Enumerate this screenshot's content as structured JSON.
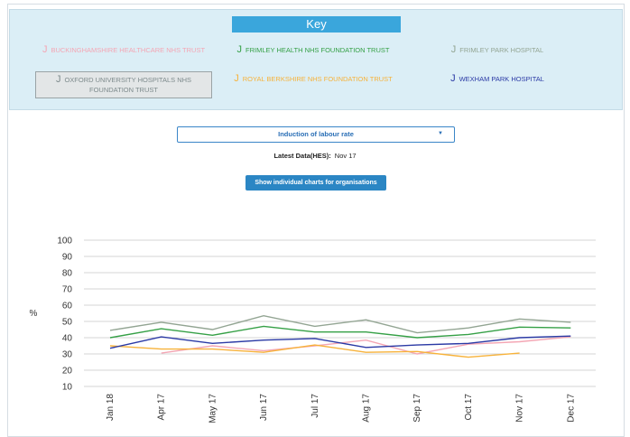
{
  "key": {
    "title": "Key",
    "icon": "j"
  },
  "dropdown": {
    "label": "Induction of labour rate",
    "arrow": "▼"
  },
  "latest": {
    "label": "Latest Data(HES):",
    "value": "Nov 17"
  },
  "button": {
    "label": "Show individual charts for organisations"
  },
  "chart_data": {
    "type": "line",
    "ylabel": "%",
    "categories": [
      "Jan 18",
      "Apr 17",
      "May 17",
      "Jun 17",
      "Jul 17",
      "Aug 17",
      "Sep 17",
      "Oct 17",
      "Nov 17",
      "Dec 17"
    ],
    "ylim": [
      10,
      100
    ],
    "yticks": [
      10,
      20,
      30,
      40,
      50,
      60,
      70,
      80,
      90,
      100
    ],
    "grid": true,
    "series": [
      {
        "name": "BUCKINGHAMSHIRE HEALTHCARE NHS TRUST",
        "color": "#f4a6b4",
        "visible": true,
        "values": [
          null,
          30.5,
          35,
          32,
          35,
          38.5,
          30,
          36,
          37.5,
          40.5
        ]
      },
      {
        "name": "FRIMLEY HEALTH NHS FOUNDATION TRUST",
        "color": "#35a046",
        "visible": true,
        "values": [
          40,
          45.5,
          41.5,
          47,
          43.5,
          43.5,
          40,
          42,
          46.5,
          46
        ]
      },
      {
        "name": "FRIMLEY PARK HOSPITAL",
        "color": "#93a593",
        "visible": true,
        "values": [
          44.5,
          49.5,
          45,
          53.5,
          47,
          51,
          43,
          46,
          51.5,
          49.5
        ]
      },
      {
        "name": "OXFORD UNIVERSITY HOSPITALS NHS FOUNDATION TRUST",
        "color": "#7d8a8c",
        "visible": false,
        "values": [
          null,
          null,
          null,
          null,
          null,
          null,
          null,
          null,
          null,
          null
        ]
      },
      {
        "name": "ROYAL BERKSHIRE NHS FOUNDATION TRUST",
        "color": "#f7b23a",
        "visible": true,
        "values": [
          35,
          33,
          33,
          31,
          35.5,
          31,
          31.5,
          28,
          30.5,
          null
        ]
      },
      {
        "name": "WEXHAM PARK HOSPITAL",
        "color": "#2b3aa5",
        "visible": true,
        "values": [
          33.5,
          40.5,
          36.5,
          38.5,
          39.5,
          34,
          35.5,
          36.5,
          40,
          41
        ]
      }
    ]
  }
}
